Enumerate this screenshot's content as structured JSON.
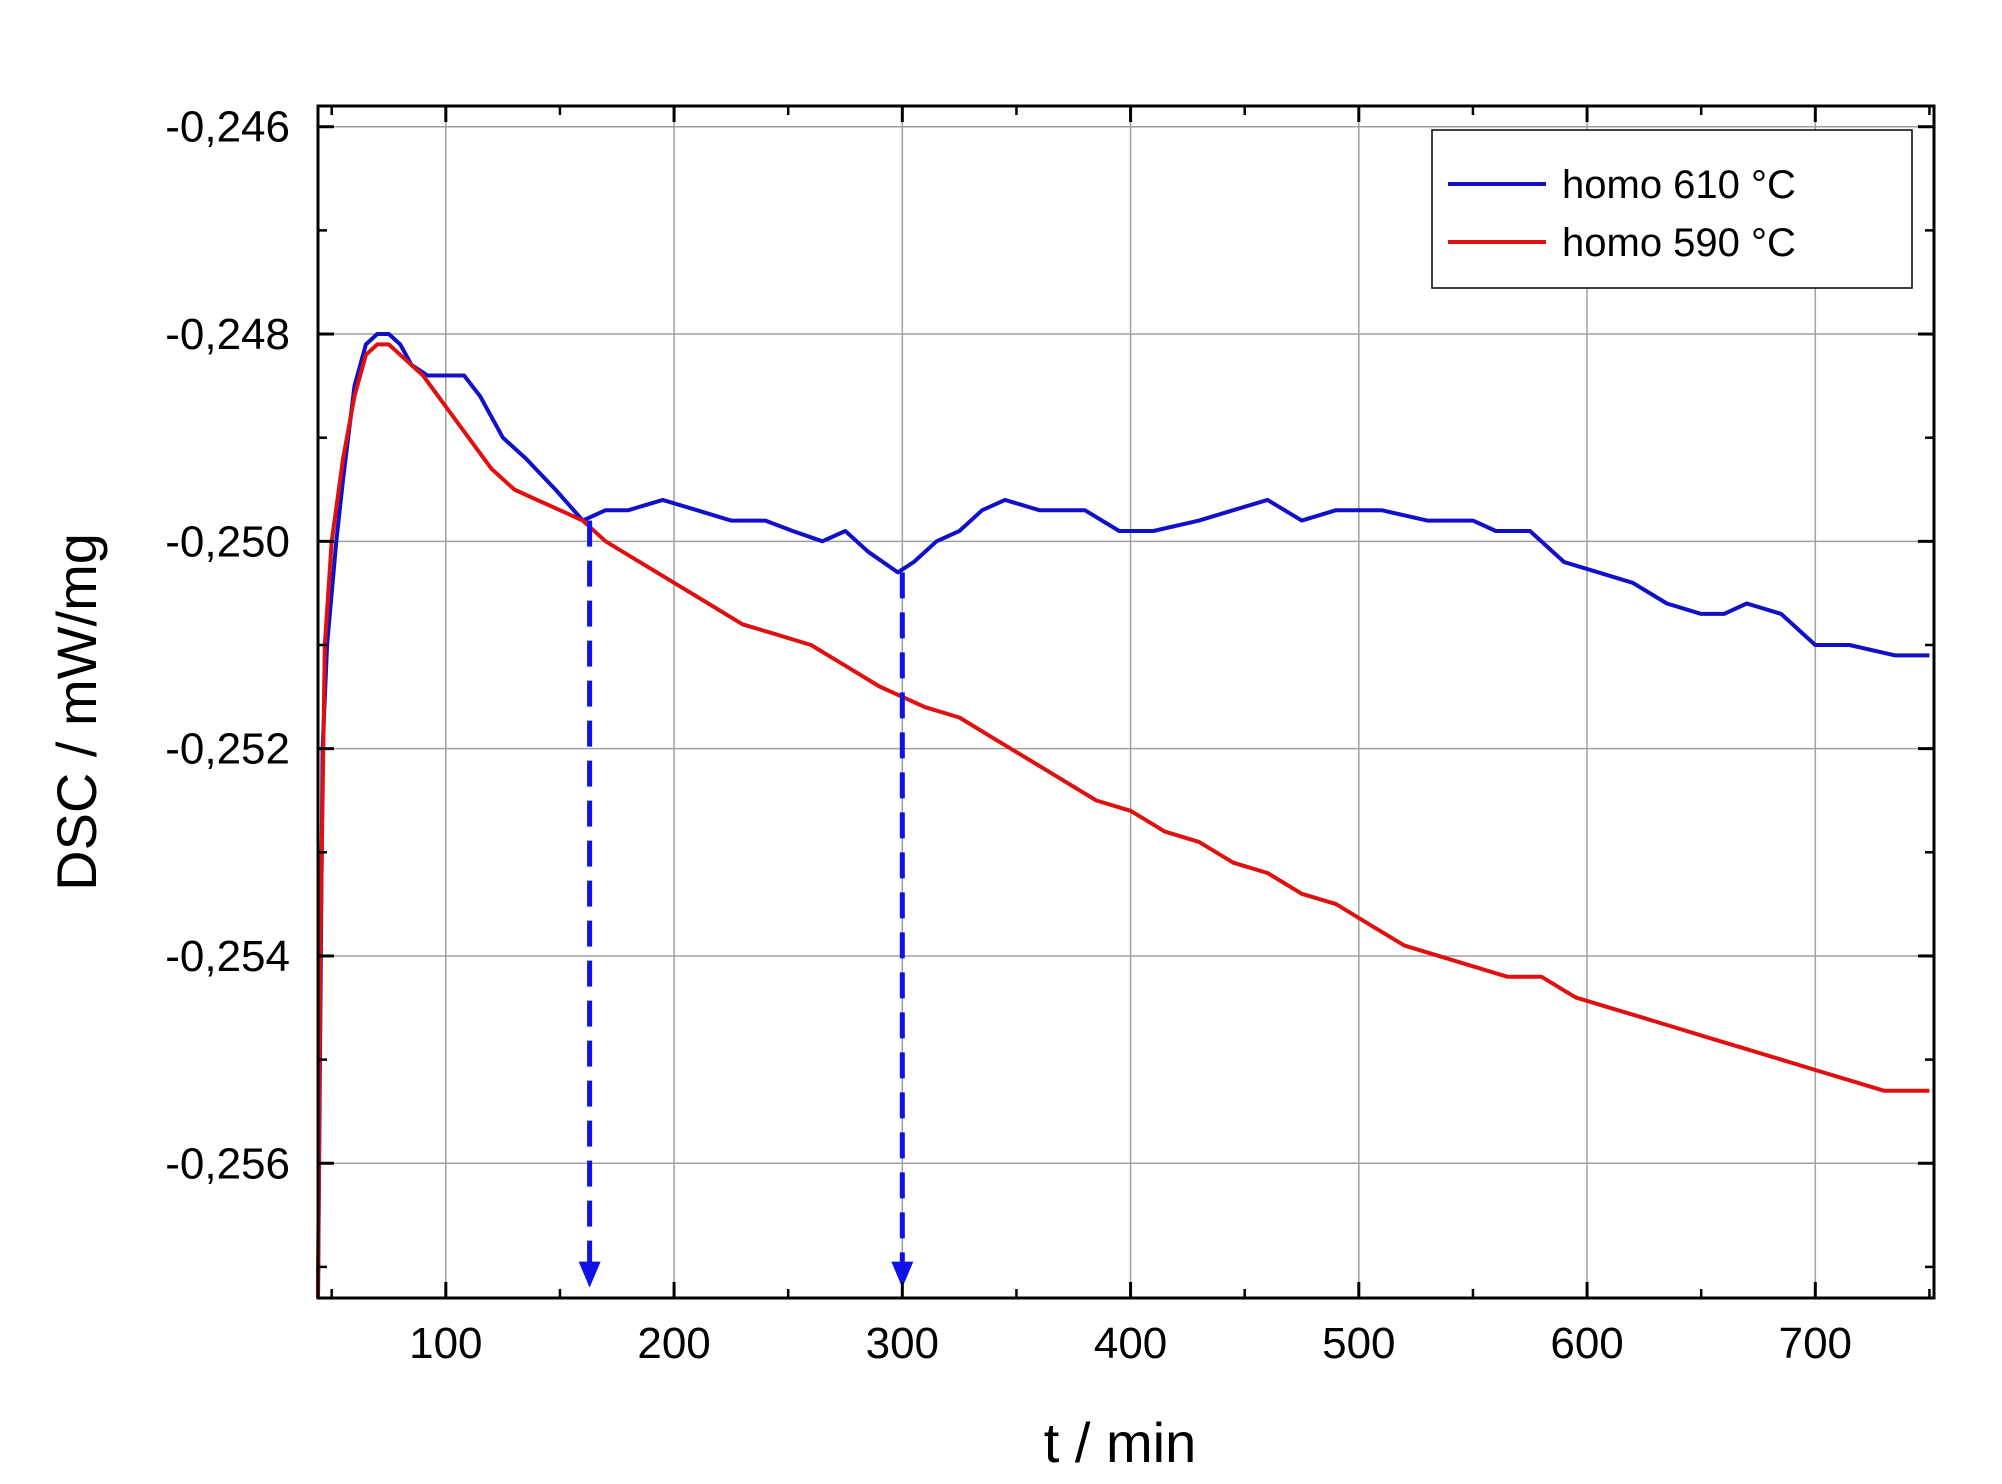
{
  "chart_data": {
    "type": "line",
    "title": "",
    "xlabel": "t / min",
    "ylabel": "DSC / mW/mg",
    "xlim": [
      44,
      752
    ],
    "ylim": [
      -0.2573,
      -0.2458
    ],
    "xticks": [
      100,
      200,
      300,
      400,
      500,
      600,
      700
    ],
    "xtick_labels": [
      "100",
      "200",
      "300",
      "400",
      "500",
      "600",
      "700"
    ],
    "yticks": [
      -0.246,
      -0.248,
      -0.25,
      -0.252,
      -0.254,
      -0.256
    ],
    "ytick_labels": [
      "-0,246",
      "-0,248",
      "-0,250",
      "-0,252",
      "-0,254",
      "-0,256"
    ],
    "grid": true,
    "legend_position": "top-right",
    "series": [
      {
        "name": "homo 610 °C",
        "color": "#1010c8",
        "points": [
          [
            44,
            -0.2573
          ],
          [
            46,
            -0.252
          ],
          [
            48,
            -0.251
          ],
          [
            50,
            -0.2505
          ],
          [
            52,
            -0.25
          ],
          [
            55,
            -0.2494
          ],
          [
            60,
            -0.2485
          ],
          [
            65,
            -0.2481
          ],
          [
            70,
            -0.248
          ],
          [
            75,
            -0.248
          ],
          [
            80,
            -0.2481
          ],
          [
            85,
            -0.2483
          ],
          [
            92,
            -0.2484
          ],
          [
            100,
            -0.2484
          ],
          [
            108,
            -0.2484
          ],
          [
            115,
            -0.2486
          ],
          [
            125,
            -0.249
          ],
          [
            135,
            -0.2492
          ],
          [
            148,
            -0.2495
          ],
          [
            160,
            -0.2498
          ],
          [
            170,
            -0.2497
          ],
          [
            180,
            -0.2497
          ],
          [
            195,
            -0.2496
          ],
          [
            210,
            -0.2497
          ],
          [
            225,
            -0.2498
          ],
          [
            240,
            -0.2498
          ],
          [
            252,
            -0.2499
          ],
          [
            265,
            -0.25
          ],
          [
            275,
            -0.2499
          ],
          [
            285,
            -0.2501
          ],
          [
            298,
            -0.2503
          ],
          [
            305,
            -0.2502
          ],
          [
            315,
            -0.25
          ],
          [
            325,
            -0.2499
          ],
          [
            335,
            -0.2497
          ],
          [
            345,
            -0.2496
          ],
          [
            360,
            -0.2497
          ],
          [
            380,
            -0.2497
          ],
          [
            395,
            -0.2499
          ],
          [
            410,
            -0.2499
          ],
          [
            430,
            -0.2498
          ],
          [
            445,
            -0.2497
          ],
          [
            460,
            -0.2496
          ],
          [
            475,
            -0.2498
          ],
          [
            490,
            -0.2497
          ],
          [
            510,
            -0.2497
          ],
          [
            530,
            -0.2498
          ],
          [
            550,
            -0.2498
          ],
          [
            560,
            -0.2499
          ],
          [
            575,
            -0.2499
          ],
          [
            590,
            -0.2502
          ],
          [
            605,
            -0.2503
          ],
          [
            620,
            -0.2504
          ],
          [
            635,
            -0.2506
          ],
          [
            650,
            -0.2507
          ],
          [
            660,
            -0.2507
          ],
          [
            670,
            -0.2506
          ],
          [
            685,
            -0.2507
          ],
          [
            700,
            -0.251
          ],
          [
            715,
            -0.251
          ],
          [
            735,
            -0.2511
          ],
          [
            750,
            -0.2511
          ]
        ]
      },
      {
        "name": "homo 590 °C",
        "color": "#e01010",
        "points": [
          [
            44,
            -0.2573
          ],
          [
            45,
            -0.254
          ],
          [
            47,
            -0.251
          ],
          [
            50,
            -0.25
          ],
          [
            55,
            -0.2492
          ],
          [
            60,
            -0.2486
          ],
          [
            65,
            -0.2482
          ],
          [
            70,
            -0.2481
          ],
          [
            75,
            -0.2481
          ],
          [
            80,
            -0.2482
          ],
          [
            90,
            -0.2484
          ],
          [
            100,
            -0.2487
          ],
          [
            110,
            -0.249
          ],
          [
            120,
            -0.2493
          ],
          [
            130,
            -0.2495
          ],
          [
            140,
            -0.2496
          ],
          [
            150,
            -0.2497
          ],
          [
            160,
            -0.2498
          ],
          [
            170,
            -0.25
          ],
          [
            185,
            -0.2502
          ],
          [
            200,
            -0.2504
          ],
          [
            215,
            -0.2506
          ],
          [
            230,
            -0.2508
          ],
          [
            245,
            -0.2509
          ],
          [
            260,
            -0.251
          ],
          [
            275,
            -0.2512
          ],
          [
            290,
            -0.2514
          ],
          [
            300,
            -0.2515
          ],
          [
            310,
            -0.2516
          ],
          [
            325,
            -0.2517
          ],
          [
            340,
            -0.2519
          ],
          [
            355,
            -0.2521
          ],
          [
            370,
            -0.2523
          ],
          [
            385,
            -0.2525
          ],
          [
            400,
            -0.2526
          ],
          [
            415,
            -0.2528
          ],
          [
            430,
            -0.2529
          ],
          [
            445,
            -0.2531
          ],
          [
            460,
            -0.2532
          ],
          [
            475,
            -0.2534
          ],
          [
            490,
            -0.2535
          ],
          [
            505,
            -0.2537
          ],
          [
            520,
            -0.2539
          ],
          [
            535,
            -0.254
          ],
          [
            550,
            -0.2541
          ],
          [
            565,
            -0.2542
          ],
          [
            580,
            -0.2542
          ],
          [
            595,
            -0.2544
          ],
          [
            610,
            -0.2545
          ],
          [
            625,
            -0.2546
          ],
          [
            640,
            -0.2547
          ],
          [
            655,
            -0.2548
          ],
          [
            670,
            -0.2549
          ],
          [
            685,
            -0.255
          ],
          [
            700,
            -0.2551
          ],
          [
            715,
            -0.2552
          ],
          [
            730,
            -0.2553
          ],
          [
            750,
            -0.2553
          ]
        ]
      }
    ],
    "annotations": [
      {
        "type": "arrow",
        "x": 163,
        "y_from": -0.2498,
        "y_to": -0.2572,
        "style": "dashed",
        "color": "#1010e8"
      },
      {
        "type": "arrow",
        "x": 300,
        "y_from": -0.2503,
        "y_to": -0.2572,
        "style": "dashed",
        "color": "#1010e8"
      }
    ]
  }
}
